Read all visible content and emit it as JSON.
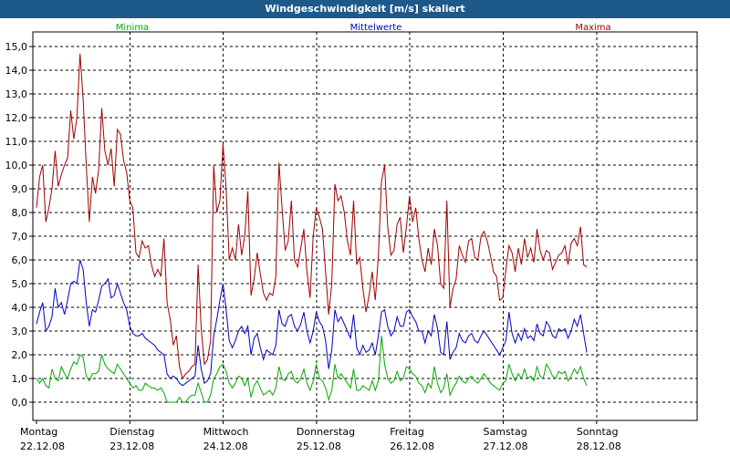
{
  "window": {
    "title": "Windgeschwindigkeit [m/s] skaliert"
  },
  "chart_data": {
    "type": "line",
    "title": "Windgeschwindigkeit [m/s] skaliert",
    "ylim": [
      -1.0,
      16.0
    ],
    "y_ticks": [
      "15,0",
      "14,0",
      "13,0",
      "12,0",
      "11,0",
      "10,0",
      "9,0",
      "8,0",
      "7,0",
      "6,0",
      "5,0",
      "4,0",
      "3,0",
      "2,0",
      "1,0",
      "0,0"
    ],
    "days": [
      {
        "weekday": "Montag",
        "date": "22.12.08"
      },
      {
        "weekday": "Dienstag",
        "date": "23.12.08"
      },
      {
        "weekday": "Mittwoch",
        "date": "24.12.08"
      },
      {
        "weekday": "Donnerstag",
        "date": "25.12.08"
      },
      {
        "weekday": "Freitag",
        "date": "26.12.08"
      },
      {
        "weekday": "Samstag",
        "date": "27.12.08"
      },
      {
        "weekday": "Sonntag",
        "date": "28.12.08"
      }
    ],
    "x_range_days": [
      0,
      7.1
    ],
    "grid": true,
    "legend": [
      {
        "label": "Minima",
        "color": "#00aa00"
      },
      {
        "label": "Mittelwerte",
        "color": "#0000c0"
      },
      {
        "label": "Maxima",
        "color": "#a00000"
      }
    ],
    "series": [
      {
        "name": "Maxima",
        "color": "#a00000",
        "x_step_days": 0.0333,
        "values": [
          8.2,
          9.5,
          10.0,
          7.6,
          8.2,
          9.0,
          10.6,
          9.1,
          9.6,
          10.0,
          10.3,
          12.3,
          11.1,
          12.0,
          14.7,
          12.8,
          10.0,
          7.6,
          9.5,
          8.8,
          9.8,
          12.4,
          10.6,
          10.0,
          10.7,
          9.1,
          11.5,
          11.3,
          10.2,
          9.7,
          8.5,
          8.2,
          6.3,
          6.1,
          6.8,
          6.5,
          6.6,
          5.8,
          5.3,
          5.6,
          5.3,
          6.9,
          4.2,
          3.5,
          2.4,
          2.8,
          1.5,
          1.0,
          1.2,
          1.3,
          1.5,
          1.6,
          5.8,
          3.1,
          1.6,
          1.8,
          2.6,
          10.0,
          8.0,
          8.5,
          10.9,
          9.0,
          6.0,
          6.5,
          6.0,
          7.5,
          6.2,
          7.0,
          8.9,
          4.5,
          5.2,
          6.3,
          5.4,
          4.6,
          4.3,
          4.6,
          4.5,
          5.3,
          10.1,
          8.2,
          6.4,
          6.8,
          8.5,
          6.0,
          5.7,
          6.5,
          7.3,
          5.5,
          4.4,
          7.0,
          8.2,
          7.8,
          7.3,
          5.5,
          3.7,
          5.0,
          9.2,
          8.5,
          8.7,
          8.0,
          6.8,
          6.2,
          8.5,
          5.8,
          6.1,
          4.8,
          3.8,
          4.5,
          5.5,
          4.3,
          6.2,
          9.3,
          10.0,
          7.4,
          6.2,
          6.4,
          7.5,
          7.8,
          6.3,
          7.4,
          8.7,
          7.6,
          8.2,
          6.9,
          6.0,
          5.5,
          6.5,
          5.8,
          7.3,
          6.6,
          5.0,
          4.8,
          8.5,
          4.0,
          4.8,
          5.2,
          6.6,
          6.2,
          5.9,
          6.8,
          6.9,
          6.1,
          6.0,
          7.0,
          7.2,
          6.8,
          6.2,
          5.5,
          5.3,
          4.3,
          4.4,
          5.6,
          6.6,
          6.3,
          5.5,
          6.5,
          5.8,
          6.9,
          6.1,
          6.5,
          5.9,
          7.3,
          6.4,
          6.0,
          6.4,
          6.3,
          5.6,
          5.9,
          6.2,
          6.3,
          6.6,
          5.8,
          6.7,
          6.9,
          6.6,
          7.4,
          5.8,
          5.7
        ]
      },
      {
        "name": "Mittelwerte",
        "color": "#0000c0",
        "x_step_days": 0.0333,
        "values": [
          3.3,
          3.8,
          4.2,
          3.0,
          3.2,
          3.6,
          4.8,
          4.0,
          4.2,
          3.7,
          4.3,
          5.0,
          5.1,
          5.0,
          6.0,
          5.6,
          4.2,
          3.2,
          3.9,
          3.8,
          4.3,
          4.9,
          5.0,
          5.2,
          4.4,
          4.5,
          5.0,
          4.6,
          4.2,
          3.9,
          3.2,
          2.9,
          2.8,
          2.8,
          2.9,
          2.7,
          2.6,
          2.5,
          2.4,
          2.2,
          2.1,
          2.0,
          1.2,
          1.0,
          1.1,
          1.0,
          0.8,
          0.7,
          0.8,
          0.9,
          1.0,
          1.1,
          2.4,
          1.4,
          0.8,
          0.9,
          1.2,
          2.8,
          3.5,
          4.3,
          5.0,
          3.9,
          2.6,
          2.3,
          2.6,
          3.0,
          3.2,
          2.9,
          3.2,
          2.0,
          2.7,
          2.9,
          2.3,
          1.8,
          2.2,
          2.1,
          2.0,
          2.4,
          3.9,
          3.3,
          3.2,
          3.6,
          3.7,
          3.2,
          3.0,
          3.3,
          3.8,
          3.0,
          2.5,
          3.0,
          3.8,
          3.4,
          3.2,
          2.6,
          1.4,
          2.2,
          3.9,
          3.4,
          3.6,
          3.3,
          3.0,
          2.7,
          3.7,
          2.3,
          2.0,
          2.4,
          2.1,
          2.2,
          2.5,
          2.0,
          2.8,
          3.8,
          3.9,
          3.2,
          2.8,
          3.0,
          3.6,
          3.2,
          3.2,
          3.8,
          3.9,
          3.6,
          3.4,
          3.0,
          3.0,
          2.5,
          3.0,
          2.8,
          3.7,
          3.1,
          2.1,
          2.0,
          3.4,
          1.8,
          2.1,
          2.3,
          2.9,
          2.6,
          2.5,
          2.8,
          2.9,
          2.6,
          2.5,
          2.8,
          3.0,
          2.8,
          2.6,
          2.4,
          2.2,
          2.0,
          2.3,
          2.6,
          3.8,
          2.9,
          2.5,
          2.9,
          2.6,
          3.1,
          2.7,
          2.8,
          2.6,
          3.3,
          2.9,
          2.8,
          3.4,
          3.2,
          2.8,
          2.7,
          3.1,
          3.0,
          3.1,
          2.7,
          3.0,
          3.5,
          3.2,
          3.7,
          2.9,
          2.1
        ]
      },
      {
        "name": "Minima",
        "color": "#00aa00",
        "x_step_days": 0.0333,
        "values": [
          1.0,
          0.8,
          1.0,
          0.7,
          0.6,
          1.4,
          1.0,
          0.9,
          1.5,
          1.2,
          1.0,
          1.4,
          1.7,
          1.6,
          2.0,
          1.9,
          1.1,
          0.9,
          1.2,
          1.2,
          1.3,
          2.0,
          1.6,
          1.4,
          1.3,
          1.2,
          1.6,
          1.4,
          1.2,
          1.0,
          0.8,
          0.6,
          0.7,
          0.5,
          0.5,
          0.8,
          0.7,
          0.6,
          0.6,
          0.5,
          0.6,
          0.4,
          0.0,
          0.0,
          0.0,
          0.0,
          0.2,
          0.0,
          0.0,
          0.2,
          0.3,
          0.3,
          0.8,
          0.4,
          0.0,
          0.0,
          0.3,
          1.0,
          1.2,
          1.5,
          1.6,
          1.3,
          0.8,
          0.6,
          0.8,
          1.1,
          1.0,
          0.7,
          1.0,
          0.2,
          0.7,
          0.9,
          0.6,
          0.3,
          0.4,
          0.5,
          0.3,
          0.6,
          1.5,
          1.0,
          0.9,
          1.2,
          1.3,
          0.9,
          0.8,
          1.0,
          1.4,
          0.8,
          0.5,
          0.9,
          1.6,
          1.0,
          0.9,
          0.6,
          0.1,
          0.5,
          1.6,
          1.0,
          1.2,
          1.0,
          0.8,
          0.6,
          1.4,
          0.5,
          0.5,
          0.7,
          0.6,
          0.5,
          0.9,
          0.5,
          0.9,
          2.8,
          1.6,
          1.0,
          0.8,
          0.9,
          1.3,
          0.9,
          1.0,
          1.5,
          1.4,
          1.2,
          1.1,
          0.8,
          0.7,
          0.4,
          0.8,
          0.6,
          1.5,
          0.8,
          0.4,
          0.6,
          1.2,
          0.3,
          0.6,
          0.8,
          1.1,
          0.9,
          0.8,
          1.0,
          1.1,
          0.9,
          0.8,
          1.0,
          1.2,
          1.0,
          0.8,
          0.7,
          0.6,
          0.5,
          0.8,
          0.9,
          1.6,
          1.2,
          0.9,
          1.2,
          1.0,
          1.4,
          1.0,
          1.1,
          0.9,
          1.5,
          1.1,
          1.0,
          1.6,
          1.4,
          1.1,
          1.0,
          1.3,
          1.2,
          1.3,
          0.9,
          1.1,
          1.4,
          1.2,
          1.5,
          1.0,
          0.7
        ]
      }
    ]
  }
}
